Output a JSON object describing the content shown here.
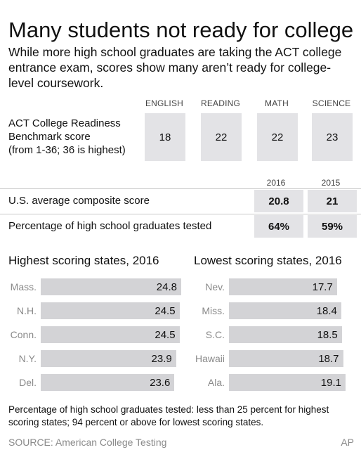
{
  "title": "Many students not ready for college",
  "subtitle": "While more high school graduates are taking the ACT college entrance exam, scores show many aren’t ready for college-level coursework.",
  "benchmark": {
    "label_lines": [
      "ACT College Readiness",
      "Benchmark score",
      "(from 1-36; 36 is highest)"
    ],
    "subjects": [
      {
        "name": "ENGLISH",
        "score": "18"
      },
      {
        "name": "READING",
        "score": "22"
      },
      {
        "name": "MATH",
        "score": "22"
      },
      {
        "name": "SCIENCE",
        "score": "23"
      }
    ]
  },
  "comparison": {
    "years": [
      "2016",
      "2015"
    ],
    "rows": [
      {
        "label": "U.S. average composite score",
        "values": [
          "20.8",
          "21"
        ]
      },
      {
        "label": "Percentage of high school graduates tested",
        "values": [
          "64%",
          "59%"
        ]
      }
    ]
  },
  "footnote": "Percentage of high school graduates tested: less than 25 percent for highest scoring states; 94 percent or above for lowest scoring states.",
  "source": "SOURCE: American College Testing",
  "credit": "AP",
  "colors": {
    "bar": "#d3d3d6",
    "box": "#e3e3e6",
    "muted": "#8a8a8a"
  },
  "chart_data": [
    {
      "type": "bar",
      "orientation": "horizontal",
      "title": "Highest scoring states, 2016",
      "categories": [
        "Mass.",
        "N.H.",
        "Conn.",
        "N.Y.",
        "Del."
      ],
      "values": [
        24.8,
        24.5,
        24.5,
        23.9,
        23.6
      ],
      "labels": [
        "24.8",
        "24.5",
        "24.5",
        "23.9",
        "23.6"
      ]
    },
    {
      "type": "bar",
      "orientation": "horizontal",
      "title": "Lowest scoring states, 2016",
      "categories": [
        "Nev.",
        "Miss.",
        "S.C.",
        "Hawaii",
        "Ala."
      ],
      "values": [
        17.7,
        18.4,
        18.5,
        18.7,
        19.1
      ],
      "labels": [
        "17.7",
        "18.4",
        "18.5",
        "18.7",
        "19.1"
      ]
    }
  ]
}
